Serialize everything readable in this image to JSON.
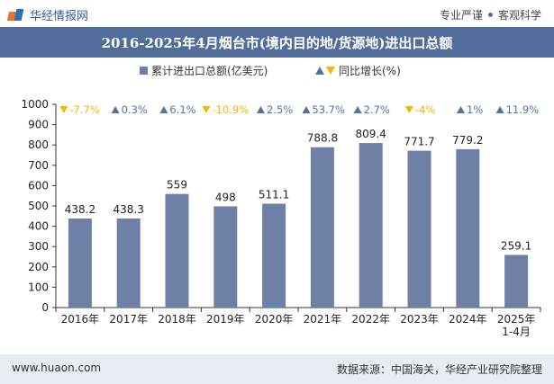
{
  "header": {
    "site_name": "华经情报网",
    "tag1": "专业严谨",
    "tag2": "客观科学"
  },
  "footer": {
    "url": "www.huaon.com",
    "source": "数据来源：中国海关，华经产业研究院整理"
  },
  "colors": {
    "bar": "#6f80a7",
    "up": "#4f73a8",
    "down": "#f2b705",
    "title_bg": "#536d9a"
  },
  "chart_data": {
    "type": "bar",
    "title": "2016-2025年4月烟台市(境内目的地/货源地)进出口总额",
    "categories": [
      "2016年",
      "2017年",
      "2018年",
      "2019年",
      "2020年",
      "2021年",
      "2022年",
      "2023年",
      "2024年",
      "2025年\n1-4月"
    ],
    "series": [
      {
        "name": "累计进出口总额(亿美元)",
        "values": [
          438.2,
          438.3,
          559,
          498,
          511.1,
          788.8,
          809.4,
          771.7,
          779.2,
          259.1
        ]
      },
      {
        "name": "同比增长(%)",
        "values": [
          -7.7,
          0.3,
          6.1,
          -10.9,
          2.5,
          53.7,
          2.7,
          -4,
          1,
          11.9
        ]
      }
    ],
    "value_labels": [
      "438.2",
      "438.3",
      "559",
      "498",
      "511.1",
      "788.8",
      "809.4",
      "771.7",
      "779.2",
      "259.1"
    ],
    "growth_labels": [
      "-7.7%",
      "0.3%",
      "6.1%",
      "-10.9%",
      "2.5%",
      "53.7%",
      "2.7%",
      "-4%",
      "1%",
      "11.9%"
    ],
    "legend": {
      "bar_label": "累计进出口总额(亿美元)",
      "growth_label": "同比增长(%)",
      "position": "top"
    },
    "ylim": [
      0,
      1000
    ],
    "yticks": [
      0,
      100,
      200,
      300,
      400,
      500,
      600,
      700,
      800,
      900,
      1000
    ],
    "grid": false
  }
}
